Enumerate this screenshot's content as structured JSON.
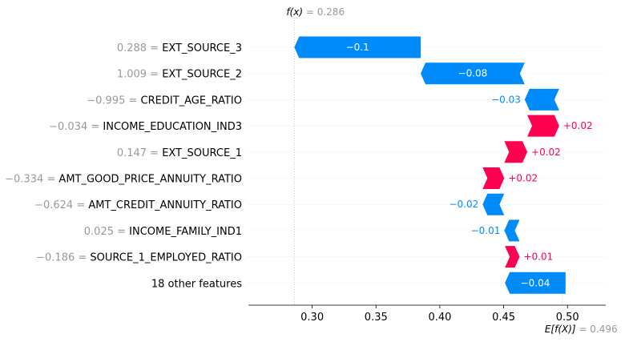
{
  "chart_data": {
    "type": "waterfall",
    "fx": {
      "symbol": "f(x)",
      "eq": " = ",
      "value": "0.286",
      "numeric": 0.286
    },
    "efx": {
      "symbol": "E[f(X)]",
      "eq": " = ",
      "value": "0.496",
      "numeric": 0.496
    },
    "xlim": [
      0.25,
      0.53
    ],
    "xticks": [
      0.3,
      0.35,
      0.4,
      0.45,
      0.5
    ],
    "xtick_labels": [
      "0.30",
      "0.35",
      "0.40",
      "0.45",
      "0.50"
    ],
    "features": [
      {
        "value_text": "0.288",
        "name": "EXT_SOURCE_3",
        "contribution": -0.1,
        "label": "−0.1",
        "start": 0.385,
        "end": 0.286
      },
      {
        "value_text": "1.009",
        "name": "EXT_SOURCE_2",
        "contribution": -0.08,
        "label": "−0.08",
        "start": 0.4665,
        "end": 0.385
      },
      {
        "value_text": "−0.995",
        "name": "CREDIT_AGE_RATIO",
        "contribution": -0.03,
        "label": "−0.03",
        "start": 0.4935,
        "end": 0.4665
      },
      {
        "value_text": "−0.034",
        "name": "INCOME_EDUCATION_IND3",
        "contribution": 0.02,
        "label": "+0.02",
        "start": 0.4685,
        "end": 0.4935
      },
      {
        "value_text": "0.147",
        "name": "EXT_SOURCE_1",
        "contribution": 0.02,
        "label": "+0.02",
        "start": 0.4505,
        "end": 0.4685
      },
      {
        "value_text": "−0.334",
        "name": "AMT_GOOD_PRICE_ANNUITY_RATIO",
        "contribution": 0.02,
        "label": "+0.02",
        "start": 0.4335,
        "end": 0.4505
      },
      {
        "value_text": "−0.624",
        "name": "AMT_CREDIT_ANNUITY_RATIO",
        "contribution": -0.02,
        "label": "−0.02",
        "start": 0.4505,
        "end": 0.4335
      },
      {
        "value_text": "0.025",
        "name": "INCOME_FAMILY_IND1",
        "contribution": -0.01,
        "label": "−0.01",
        "start": 0.4625,
        "end": 0.4505
      },
      {
        "value_text": "−0.186",
        "name": "SOURCE_1_EMPLOYED_RATIO",
        "contribution": 0.01,
        "label": "+0.01",
        "start": 0.451,
        "end": 0.4625
      },
      {
        "value_text": "",
        "name": "18 other features",
        "contribution": -0.04,
        "label": "−0.04",
        "start": 0.4985,
        "end": 0.451
      }
    ],
    "colors": {
      "positive": "#ff0051",
      "negative": "#008bfb",
      "grid": "#cccccc",
      "value_text": "#999999"
    }
  }
}
